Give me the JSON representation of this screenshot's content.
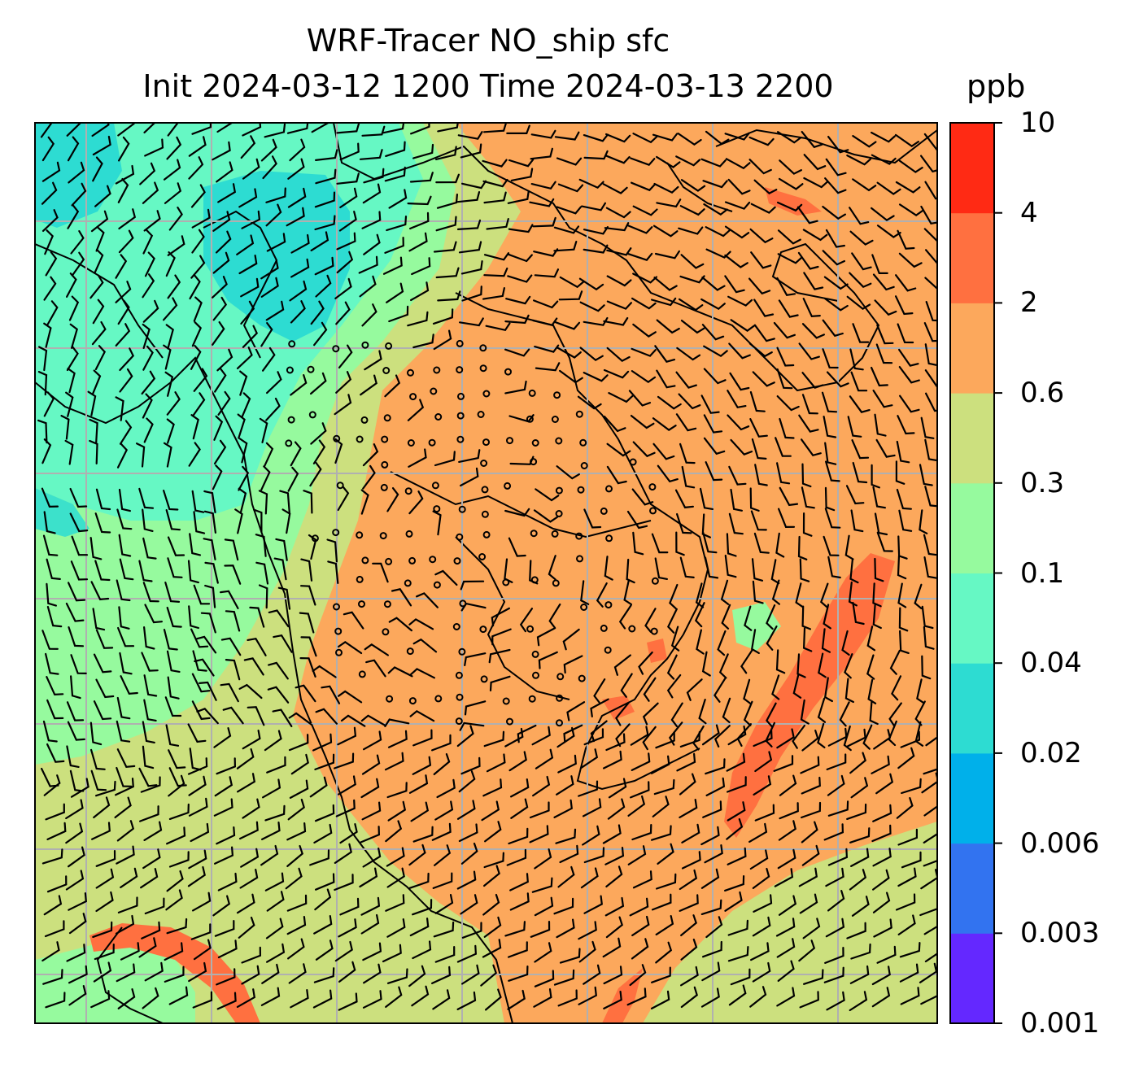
{
  "title": {
    "line1": "WRF-Tracer NO_ship sfc",
    "line2": "Init 2024-03-12 1200 Time 2024-03-13 2200"
  },
  "colorbar": {
    "units": "ppb",
    "levels": [
      "0.001",
      "0.003",
      "0.006",
      "0.02",
      "0.04",
      "0.1",
      "0.3",
      "0.6",
      "2",
      "4",
      "10"
    ],
    "colors": [
      "#6428ff",
      "#3273f0",
      "#00b0ea",
      "#2ddcd2",
      "#66f8c4",
      "#96fa9e",
      "#cce07e",
      "#fca85c",
      "#ff7040",
      "#ff2a14"
    ]
  },
  "map": {
    "grid": "on",
    "grid_color": "#b0b0b0"
  }
}
